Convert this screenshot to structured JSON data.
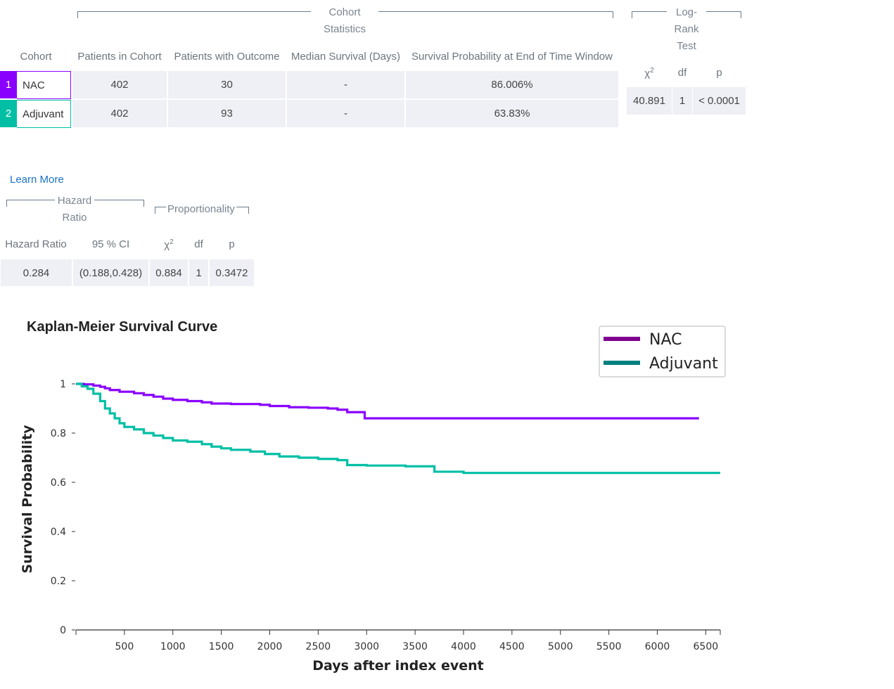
{
  "cohort_table": {
    "group_label": "Cohort Statistics",
    "headers": {
      "cohort": "Cohort",
      "patients": "Patients in Cohort",
      "outcome": "Patients with Outcome",
      "median": "Median Survival (Days)",
      "prob": "Survival Probability at End of Time Window"
    },
    "rows": [
      {
        "num": "1",
        "name": "NAC",
        "color": "#8a00ff",
        "patients": "402",
        "outcome": "30",
        "median": "-",
        "prob": "86.006%"
      },
      {
        "num": "2",
        "name": "Adjuvant",
        "color": "#00bfa5",
        "patients": "402",
        "outcome": "93",
        "median": "-",
        "prob": "63.83%"
      }
    ]
  },
  "logrank": {
    "group_label": "Log-Rank Test",
    "headers": {
      "chi": "χ",
      "df": "df",
      "p": "p"
    },
    "values": {
      "chi": "40.891",
      "df": "1",
      "p": "< 0.0001"
    }
  },
  "learn_more": "Learn More",
  "hazard": {
    "hr_group": "Hazard Ratio",
    "prop_group": "Proportionality",
    "headers": {
      "hr": "Hazard Ratio",
      "ci": "95 % CI",
      "chi": "χ",
      "df": "df",
      "p": "p"
    },
    "values": {
      "hr": "0.284",
      "ci": "(0.188,0.428)",
      "chi": "0.884",
      "df": "1",
      "p": "0.3472"
    }
  },
  "chart_data": {
    "type": "line",
    "title": "Kaplan-Meier Survival Curve",
    "xlabel": "Days after index event",
    "ylabel": "Survival Probability",
    "xlim": [
      0,
      6650
    ],
    "ylim": [
      0,
      1
    ],
    "xticks": [
      500,
      1000,
      1500,
      2000,
      2500,
      3000,
      3500,
      4000,
      4500,
      5000,
      5500,
      6000,
      6500
    ],
    "yticks": [
      0,
      0.2,
      0.4,
      0.6,
      0.8,
      1
    ],
    "legend_position": "top-right",
    "series": [
      {
        "name": "NAC",
        "color": "#8000c0",
        "x": [
          0,
          80,
          180,
          250,
          300,
          350,
          450,
          600,
          700,
          800,
          900,
          1000,
          1150,
          1300,
          1400,
          1600,
          1900,
          2000,
          2200,
          2400,
          2600,
          2700,
          2800,
          2980,
          3200,
          4000,
          5000,
          6000,
          6430
        ],
        "y": [
          1.0,
          0.998,
          0.993,
          0.988,
          0.982,
          0.975,
          0.968,
          0.962,
          0.955,
          0.948,
          0.94,
          0.935,
          0.93,
          0.925,
          0.92,
          0.918,
          0.915,
          0.91,
          0.905,
          0.903,
          0.9,
          0.895,
          0.885,
          0.86,
          0.86,
          0.86,
          0.86,
          0.86,
          0.86
        ]
      },
      {
        "name": "Adjuvant",
        "color": "#00b8a0",
        "x": [
          0,
          60,
          120,
          180,
          250,
          300,
          350,
          400,
          450,
          500,
          600,
          700,
          800,
          900,
          1000,
          1150,
          1300,
          1400,
          1500,
          1600,
          1800,
          1950,
          2100,
          2300,
          2500,
          2700,
          2800,
          3000,
          3400,
          3700,
          4000,
          5000,
          6000,
          6650
        ],
        "y": [
          1.0,
          0.99,
          0.98,
          0.96,
          0.93,
          0.9,
          0.88,
          0.86,
          0.84,
          0.825,
          0.815,
          0.8,
          0.79,
          0.78,
          0.77,
          0.765,
          0.755,
          0.745,
          0.738,
          0.732,
          0.725,
          0.715,
          0.705,
          0.7,
          0.695,
          0.69,
          0.67,
          0.668,
          0.665,
          0.643,
          0.638,
          0.638,
          0.638,
          0.638
        ]
      }
    ]
  }
}
